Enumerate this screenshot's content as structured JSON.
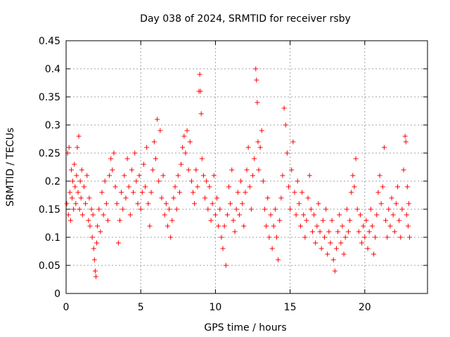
{
  "chart_data": {
    "type": "scatter",
    "title": "Day 038 of 2024, SRMTID for receiver rsby",
    "xlabel": "GPS time / hours",
    "ylabel": "SRMTID / TECUs",
    "xlim": [
      0,
      24.2
    ],
    "ylim": [
      0,
      0.45
    ],
    "xticks": [
      0,
      5,
      10,
      15,
      20
    ],
    "xtick_labels": [
      "0",
      "5",
      "10",
      "15",
      "20"
    ],
    "yticks": [
      0,
      0.05,
      0.1,
      0.15,
      0.2,
      0.25,
      0.3,
      0.35,
      0.4,
      0.45
    ],
    "ytick_labels": [
      "0",
      "0.05",
      "0.1",
      "0.15",
      "0.2",
      "0.25",
      "0.3",
      "0.35",
      "0.4",
      "0.45"
    ],
    "grid": true,
    "marker": "+",
    "color": "#ff0000",
    "series": [
      {
        "points": [
          [
            0.05,
            0.16
          ],
          [
            0.1,
            0.25
          ],
          [
            0.15,
            0.14
          ],
          [
            0.2,
            0.26
          ],
          [
            0.25,
            0.18
          ],
          [
            0.3,
            0.13
          ],
          [
            0.35,
            0.22
          ],
          [
            0.4,
            0.17
          ],
          [
            0.45,
            0.2
          ],
          [
            0.5,
            0.15
          ],
          [
            0.55,
            0.23
          ],
          [
            0.6,
            0.19
          ],
          [
            0.65,
            0.16
          ],
          [
            0.7,
            0.21
          ],
          [
            0.75,
            0.26
          ],
          [
            0.8,
            0.18
          ],
          [
            0.85,
            0.28
          ],
          [
            0.9,
            0.15
          ],
          [
            0.95,
            0.2
          ],
          [
            1.0,
            0.17
          ],
          [
            1.05,
            0.22
          ],
          [
            1.1,
            0.14
          ],
          [
            1.2,
            0.19
          ],
          [
            1.3,
            0.16
          ],
          [
            1.4,
            0.21
          ],
          [
            1.5,
            0.13
          ],
          [
            1.55,
            0.17
          ],
          [
            1.6,
            0.12
          ],
          [
            1.7,
            0.15
          ],
          [
            1.75,
            0.1
          ],
          [
            1.8,
            0.14
          ],
          [
            1.85,
            0.08
          ],
          [
            1.9,
            0.06
          ],
          [
            1.95,
            0.04
          ],
          [
            2.0,
            0.03
          ],
          [
            2.05,
            0.09
          ],
          [
            2.1,
            0.12
          ],
          [
            2.2,
            0.15
          ],
          [
            2.3,
            0.11
          ],
          [
            2.4,
            0.18
          ],
          [
            2.5,
            0.14
          ],
          [
            2.6,
            0.2
          ],
          [
            2.7,
            0.16
          ],
          [
            2.8,
            0.13
          ],
          [
            2.9,
            0.21
          ],
          [
            3.0,
            0.24
          ],
          [
            3.1,
            0.22
          ],
          [
            3.2,
            0.25
          ],
          [
            3.3,
            0.19
          ],
          [
            3.4,
            0.16
          ],
          [
            3.5,
            0.09
          ],
          [
            3.6,
            0.13
          ],
          [
            3.7,
            0.18
          ],
          [
            3.8,
            0.15
          ],
          [
            3.9,
            0.21
          ],
          [
            4.0,
            0.17
          ],
          [
            4.1,
            0.24
          ],
          [
            4.2,
            0.19
          ],
          [
            4.3,
            0.14
          ],
          [
            4.4,
            0.22
          ],
          [
            4.5,
            0.18
          ],
          [
            4.6,
            0.25
          ],
          [
            4.7,
            0.2
          ],
          [
            4.8,
            0.16
          ],
          [
            4.9,
            0.21
          ],
          [
            5.0,
            0.15
          ],
          [
            5.1,
            0.18
          ],
          [
            5.2,
            0.23
          ],
          [
            5.3,
            0.19
          ],
          [
            5.4,
            0.26
          ],
          [
            5.5,
            0.16
          ],
          [
            5.6,
            0.12
          ],
          [
            5.7,
            0.18
          ],
          [
            5.8,
            0.22
          ],
          [
            5.9,
            0.27
          ],
          [
            6.0,
            0.24
          ],
          [
            6.1,
            0.31
          ],
          [
            6.2,
            0.2
          ],
          [
            6.3,
            0.29
          ],
          [
            6.4,
            0.17
          ],
          [
            6.5,
            0.21
          ],
          [
            6.6,
            0.14
          ],
          [
            6.7,
            0.16
          ],
          [
            6.8,
            0.12
          ],
          [
            6.9,
            0.15
          ],
          [
            7.0,
            0.1
          ],
          [
            7.1,
            0.13
          ],
          [
            7.2,
            0.17
          ],
          [
            7.3,
            0.19
          ],
          [
            7.4,
            0.15
          ],
          [
            7.5,
            0.21
          ],
          [
            7.6,
            0.18
          ],
          [
            7.7,
            0.23
          ],
          [
            7.8,
            0.26
          ],
          [
            7.9,
            0.28
          ],
          [
            8.0,
            0.25
          ],
          [
            8.1,
            0.29
          ],
          [
            8.2,
            0.22
          ],
          [
            8.3,
            0.27
          ],
          [
            8.4,
            0.2
          ],
          [
            8.5,
            0.18
          ],
          [
            8.6,
            0.16
          ],
          [
            8.7,
            0.22
          ],
          [
            8.8,
            0.19
          ],
          [
            8.9,
            0.36
          ],
          [
            8.95,
            0.39
          ],
          [
            9.0,
            0.36
          ],
          [
            9.05,
            0.32
          ],
          [
            9.1,
            0.24
          ],
          [
            9.2,
            0.21
          ],
          [
            9.3,
            0.17
          ],
          [
            9.4,
            0.2
          ],
          [
            9.5,
            0.15
          ],
          [
            9.6,
            0.19
          ],
          [
            9.7,
            0.13
          ],
          [
            9.8,
            0.16
          ],
          [
            9.9,
            0.21
          ],
          [
            10.0,
            0.14
          ],
          [
            10.1,
            0.17
          ],
          [
            10.2,
            0.12
          ],
          [
            10.3,
            0.15
          ],
          [
            10.4,
            0.1
          ],
          [
            10.5,
            0.08
          ],
          [
            10.6,
            0.12
          ],
          [
            10.7,
            0.05
          ],
          [
            10.8,
            0.14
          ],
          [
            10.9,
            0.19
          ],
          [
            11.0,
            0.16
          ],
          [
            11.1,
            0.22
          ],
          [
            11.2,
            0.13
          ],
          [
            11.3,
            0.11
          ],
          [
            11.4,
            0.15
          ],
          [
            11.5,
            0.18
          ],
          [
            11.6,
            0.14
          ],
          [
            11.7,
            0.2
          ],
          [
            11.8,
            0.16
          ],
          [
            11.9,
            0.12
          ],
          [
            12.0,
            0.18
          ],
          [
            12.1,
            0.22
          ],
          [
            12.2,
            0.26
          ],
          [
            12.3,
            0.19
          ],
          [
            12.4,
            0.15
          ],
          [
            12.5,
            0.21
          ],
          [
            12.6,
            0.24
          ],
          [
            12.7,
            0.4
          ],
          [
            12.75,
            0.38
          ],
          [
            12.8,
            0.34
          ],
          [
            12.85,
            0.27
          ],
          [
            12.9,
            0.22
          ],
          [
            13.0,
            0.26
          ],
          [
            13.1,
            0.29
          ],
          [
            13.2,
            0.2
          ],
          [
            13.3,
            0.15
          ],
          [
            13.4,
            0.12
          ],
          [
            13.5,
            0.17
          ],
          [
            13.6,
            0.1
          ],
          [
            13.7,
            0.14
          ],
          [
            13.8,
            0.08
          ],
          [
            13.9,
            0.12
          ],
          [
            14.0,
            0.15
          ],
          [
            14.1,
            0.1
          ],
          [
            14.2,
            0.06
          ],
          [
            14.3,
            0.13
          ],
          [
            14.4,
            0.17
          ],
          [
            14.5,
            0.21
          ],
          [
            14.6,
            0.33
          ],
          [
            14.7,
            0.3
          ],
          [
            14.8,
            0.25
          ],
          [
            14.9,
            0.19
          ],
          [
            15.0,
            0.15
          ],
          [
            15.1,
            0.22
          ],
          [
            15.2,
            0.27
          ],
          [
            15.3,
            0.18
          ],
          [
            15.4,
            0.14
          ],
          [
            15.5,
            0.2
          ],
          [
            15.6,
            0.16
          ],
          [
            15.7,
            0.12
          ],
          [
            15.8,
            0.18
          ],
          [
            15.9,
            0.14
          ],
          [
            16.0,
            0.1
          ],
          [
            16.1,
            0.13
          ],
          [
            16.2,
            0.17
          ],
          [
            16.3,
            0.21
          ],
          [
            16.4,
            0.15
          ],
          [
            16.5,
            0.11
          ],
          [
            16.6,
            0.14
          ],
          [
            16.7,
            0.09
          ],
          [
            16.8,
            0.12
          ],
          [
            16.9,
            0.16
          ],
          [
            17.0,
            0.11
          ],
          [
            17.1,
            0.08
          ],
          [
            17.2,
            0.13
          ],
          [
            17.3,
            0.1
          ],
          [
            17.4,
            0.15
          ],
          [
            17.5,
            0.07
          ],
          [
            17.6,
            0.11
          ],
          [
            17.7,
            0.09
          ],
          [
            17.8,
            0.13
          ],
          [
            17.9,
            0.06
          ],
          [
            18.0,
            0.04
          ],
          [
            18.1,
            0.08
          ],
          [
            18.2,
            0.11
          ],
          [
            18.3,
            0.14
          ],
          [
            18.4,
            0.09
          ],
          [
            18.5,
            0.12
          ],
          [
            18.6,
            0.07
          ],
          [
            18.7,
            0.1
          ],
          [
            18.8,
            0.15
          ],
          [
            18.9,
            0.11
          ],
          [
            19.0,
            0.13
          ],
          [
            19.1,
            0.18
          ],
          [
            19.2,
            0.21
          ],
          [
            19.3,
            0.19
          ],
          [
            19.4,
            0.24
          ],
          [
            19.5,
            0.15
          ],
          [
            19.6,
            0.11
          ],
          [
            19.7,
            0.14
          ],
          [
            19.8,
            0.09
          ],
          [
            19.9,
            0.12
          ],
          [
            20.0,
            0.1
          ],
          [
            20.1,
            0.13
          ],
          [
            20.2,
            0.08
          ],
          [
            20.3,
            0.11
          ],
          [
            20.4,
            0.15
          ],
          [
            20.5,
            0.12
          ],
          [
            20.6,
            0.07
          ],
          [
            20.7,
            0.1
          ],
          [
            20.8,
            0.14
          ],
          [
            20.9,
            0.18
          ],
          [
            21.0,
            0.21
          ],
          [
            21.1,
            0.16
          ],
          [
            21.2,
            0.19
          ],
          [
            21.3,
            0.26
          ],
          [
            21.4,
            0.13
          ],
          [
            21.5,
            0.1
          ],
          [
            21.6,
            0.15
          ],
          [
            21.7,
            0.12
          ],
          [
            21.8,
            0.17
          ],
          [
            21.9,
            0.14
          ],
          [
            22.0,
            0.11
          ],
          [
            22.1,
            0.16
          ],
          [
            22.2,
            0.19
          ],
          [
            22.3,
            0.13
          ],
          [
            22.4,
            0.1
          ],
          [
            22.5,
            0.15
          ],
          [
            22.6,
            0.22
          ],
          [
            22.7,
            0.28
          ],
          [
            22.75,
            0.27
          ],
          [
            22.8,
            0.14
          ],
          [
            22.85,
            0.19
          ],
          [
            22.9,
            0.12
          ],
          [
            22.95,
            0.16
          ],
          [
            23.0,
            0.1
          ]
        ]
      }
    ]
  }
}
